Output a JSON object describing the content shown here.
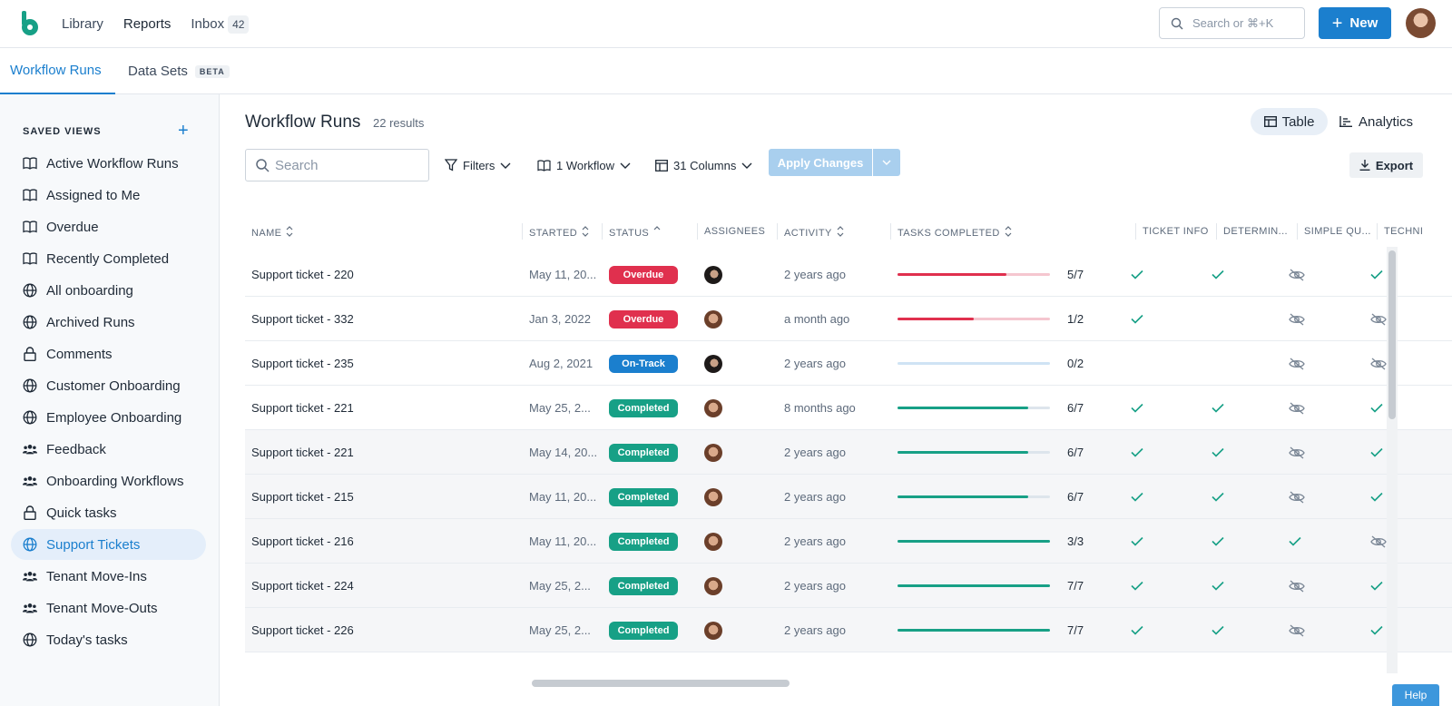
{
  "topnav": {
    "library": "Library",
    "reports": "Reports",
    "inbox": "Inbox",
    "inbox_count": "42",
    "search_placeholder": "Search or ⌘+K",
    "new_label": "New"
  },
  "subtabs": {
    "workflow_runs": "Workflow Runs",
    "data_sets": "Data Sets",
    "beta": "BETA"
  },
  "sidebar": {
    "title": "SAVED VIEWS",
    "items": [
      {
        "label": "Active Workflow Runs",
        "icon": "book-icon"
      },
      {
        "label": "Assigned to Me",
        "icon": "book-icon"
      },
      {
        "label": "Overdue",
        "icon": "book-icon"
      },
      {
        "label": "Recently Completed",
        "icon": "book-icon"
      },
      {
        "label": "All onboarding",
        "icon": "globe-icon"
      },
      {
        "label": "Archived Runs",
        "icon": "globe-icon"
      },
      {
        "label": "Comments",
        "icon": "lock-icon"
      },
      {
        "label": "Customer Onboarding",
        "icon": "globe-icon"
      },
      {
        "label": "Employee Onboarding",
        "icon": "globe-icon"
      },
      {
        "label": "Feedback",
        "icon": "users-icon"
      },
      {
        "label": "Onboarding Workflows",
        "icon": "users-icon"
      },
      {
        "label": "Quick tasks",
        "icon": "lock-icon"
      },
      {
        "label": "Support Tickets",
        "icon": "globe-icon",
        "active": true
      },
      {
        "label": "Tenant Move-Ins",
        "icon": "users-icon"
      },
      {
        "label": "Tenant Move-Outs",
        "icon": "users-icon"
      },
      {
        "label": "Today's tasks",
        "icon": "globe-icon"
      }
    ]
  },
  "main": {
    "title": "Workflow Runs",
    "results": "22 results",
    "view_table": "Table",
    "view_analytics": "Analytics",
    "search_placeholder": "Search",
    "filters": "Filters",
    "workflow": "1 Workflow",
    "columns": "31 Columns",
    "apply": "Apply Changes",
    "export": "Export"
  },
  "table": {
    "headers": {
      "name": "NAME",
      "started": "STARTED",
      "status": "STATUS",
      "assignees": "ASSIGNEES",
      "activity": "ACTIVITY",
      "tasks": "TASKS COMPLETED",
      "ticket": "TICKET INFO",
      "determin": "DETERMIN...",
      "simple": "SIMPLE QU...",
      "techni": "TECHNI"
    },
    "colors": {
      "overdue": "#e0304e",
      "ontrack": "#1b7fce",
      "completed": "#17a086",
      "overdue_track": "#f5c6cf",
      "ontrack_track": "#cfe3f4",
      "completed_track": "#dde5ec"
    },
    "rows": [
      {
        "name": "Support ticket - 220",
        "started": "May 11, 20...",
        "status": "Overdue",
        "kind": "overdue",
        "avatar": "b",
        "activity": "2 years ago",
        "done": 5,
        "total": 7,
        "count": "5/7",
        "ticket": "check",
        "determin": "check",
        "simple": "eye-off",
        "techni": "check"
      },
      {
        "name": "Support ticket - 332",
        "started": "Jan 3, 2022",
        "status": "Overdue",
        "kind": "overdue",
        "avatar": "a",
        "activity": "a month ago",
        "done": 1,
        "total": 2,
        "count": "1/2",
        "ticket": "check",
        "determin": "",
        "simple": "eye-off",
        "techni": "eye-off"
      },
      {
        "name": "Support ticket - 235",
        "started": "Aug 2, 2021",
        "status": "On-Track",
        "kind": "ontrack",
        "avatar": "b",
        "activity": "2 years ago",
        "done": 0,
        "total": 2,
        "count": "0/2",
        "ticket": "",
        "determin": "",
        "simple": "eye-off",
        "techni": "eye-off"
      },
      {
        "name": "Support ticket - 221",
        "started": "May 25, 2...",
        "status": "Completed",
        "kind": "completed",
        "avatar": "a",
        "activity": "8 months ago",
        "done": 6,
        "total": 7,
        "count": "6/7",
        "ticket": "check",
        "determin": "check",
        "simple": "eye-off",
        "techni": "check"
      },
      {
        "name": "Support ticket - 221",
        "started": "May 14, 20...",
        "status": "Completed",
        "kind": "completed",
        "avatar": "a",
        "activity": "2 years ago",
        "done": 6,
        "total": 7,
        "count": "6/7",
        "ticket": "check",
        "determin": "check",
        "simple": "eye-off",
        "techni": "check"
      },
      {
        "name": "Support ticket - 215",
        "started": "May 11, 20...",
        "status": "Completed",
        "kind": "completed",
        "avatar": "a",
        "activity": "2 years ago",
        "done": 6,
        "total": 7,
        "count": "6/7",
        "ticket": "check",
        "determin": "check",
        "simple": "eye-off",
        "techni": "check"
      },
      {
        "name": "Support ticket - 216",
        "started": "May 11, 20...",
        "status": "Completed",
        "kind": "completed",
        "avatar": "a",
        "activity": "2 years ago",
        "done": 3,
        "total": 3,
        "count": "3/3",
        "ticket": "check",
        "determin": "check",
        "simple": "check",
        "techni": "eye-off"
      },
      {
        "name": "Support ticket - 224",
        "started": "May 25, 2...",
        "status": "Completed",
        "kind": "completed",
        "avatar": "a",
        "activity": "2 years ago",
        "done": 7,
        "total": 7,
        "count": "7/7",
        "ticket": "check",
        "determin": "check",
        "simple": "eye-off",
        "techni": "check"
      },
      {
        "name": "Support ticket - 226",
        "started": "May 25, 2...",
        "status": "Completed",
        "kind": "completed",
        "avatar": "a",
        "activity": "2 years ago",
        "done": 7,
        "total": 7,
        "count": "7/7",
        "ticket": "check",
        "determin": "check",
        "simple": "eye-off",
        "techni": "check"
      }
    ]
  },
  "help": "Help"
}
